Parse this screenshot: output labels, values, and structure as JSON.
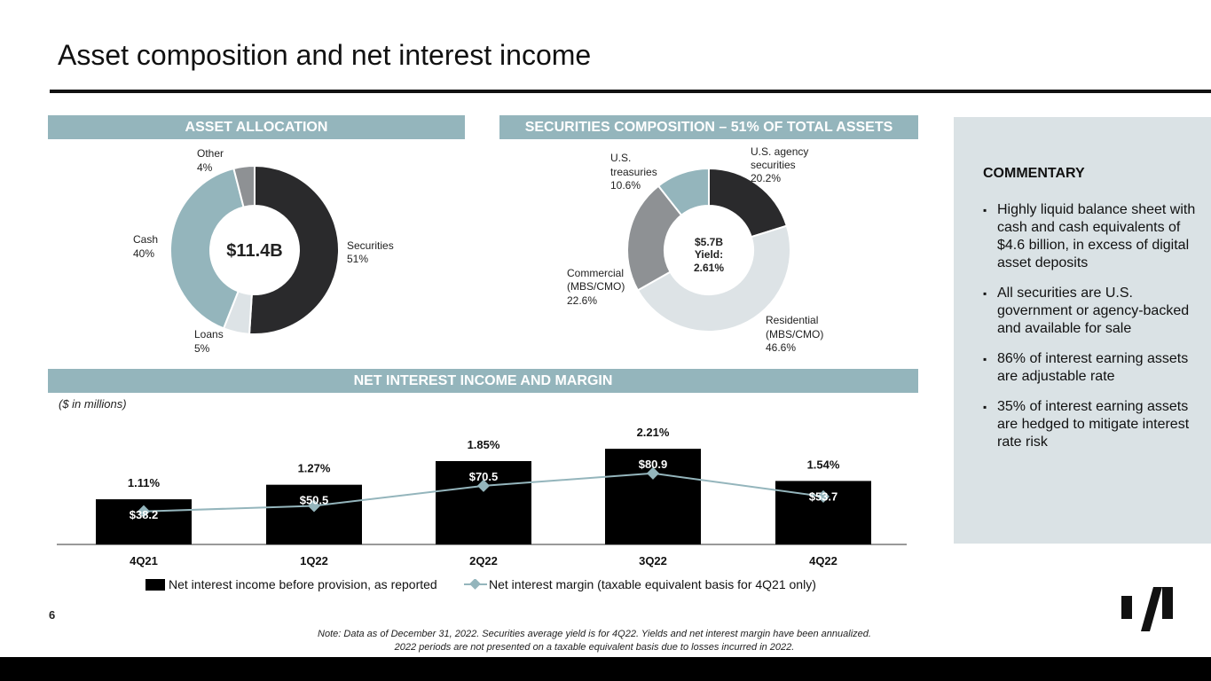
{
  "page": {
    "title": "Asset composition and net interest income",
    "page_number": "6",
    "footnote_line1": "Note: Data as of December 31, 2022. Securities average yield is for 4Q22. Yields and net interest margin have been annualized.",
    "footnote_line2": "2022 periods are not presented on a taxable equivalent basis due to losses incurred in 2022."
  },
  "sections": {
    "asset_allocation": "ASSET ALLOCATION",
    "securities_composition": "SECURITIES COMPOSITION – 51% OF TOTAL ASSETS",
    "nii": "NET INTEREST INCOME AND MARGIN"
  },
  "commentary": {
    "heading": "COMMENTARY",
    "bullets": [
      "Highly liquid balance sheet with cash and cash equivalents of $4.6 billion, in excess of digital asset deposits",
      "All securities are U.S. government or agency-backed and available for sale",
      "86% of interest earning assets are adjustable rate",
      "35% of interest earning assets are hedged to mitigate interest rate risk"
    ]
  },
  "chart_data": [
    {
      "type": "pie",
      "donut": true,
      "center_label": "$11.4B",
      "slices": [
        {
          "name": "Securities",
          "value": 51,
          "label": "51%",
          "color": "#2a2a2c"
        },
        {
          "name": "Loans",
          "value": 5,
          "label": "5%",
          "color": "#dde3e6"
        },
        {
          "name": "Cash",
          "value": 40,
          "label": "40%",
          "color": "#94b5bc"
        },
        {
          "name": "Other",
          "value": 4,
          "label": "4%",
          "color": "#8e9194"
        }
      ]
    },
    {
      "type": "pie",
      "donut": true,
      "center_label_lines": [
        "$5.7B",
        "Yield:",
        "2.61%"
      ],
      "slices": [
        {
          "name_lines": [
            "U.S. agency",
            "securities"
          ],
          "value": 20.2,
          "label": "20.2%",
          "color": "#2a2a2c"
        },
        {
          "name_lines": [
            "Residential",
            "(MBS/CMO)"
          ],
          "value": 46.6,
          "label": "46.6%",
          "color": "#dde3e6"
        },
        {
          "name_lines": [
            "Commercial",
            "(MBS/CMO)"
          ],
          "value": 22.6,
          "label": "22.6%",
          "color": "#8e9194"
        },
        {
          "name_lines": [
            "U.S.",
            "treasuries"
          ],
          "value": 10.6,
          "label": "10.6%",
          "color": "#94b5bc"
        }
      ]
    },
    {
      "type": "bar",
      "unit_note": "($ in millions)",
      "categories": [
        "4Q21",
        "1Q22",
        "2Q22",
        "3Q22",
        "4Q22"
      ],
      "series": [
        {
          "name": "Net interest income before provision, as reported",
          "type": "bar",
          "color": "#000000",
          "values": [
            38.2,
            50.5,
            70.5,
            80.9,
            53.7
          ],
          "labels": [
            "$38.2",
            "$50.5",
            "$70.5",
            "$80.9",
            "$53.7"
          ]
        },
        {
          "name": "Net interest margin (taxable equivalent basis for 4Q21 only)",
          "type": "line",
          "color": "#94b5bc",
          "values": [
            1.11,
            1.27,
            1.85,
            2.21,
            1.54
          ],
          "labels": [
            "1.11%",
            "1.27%",
            "1.85%",
            "2.21%",
            "1.54%"
          ]
        }
      ]
    }
  ]
}
